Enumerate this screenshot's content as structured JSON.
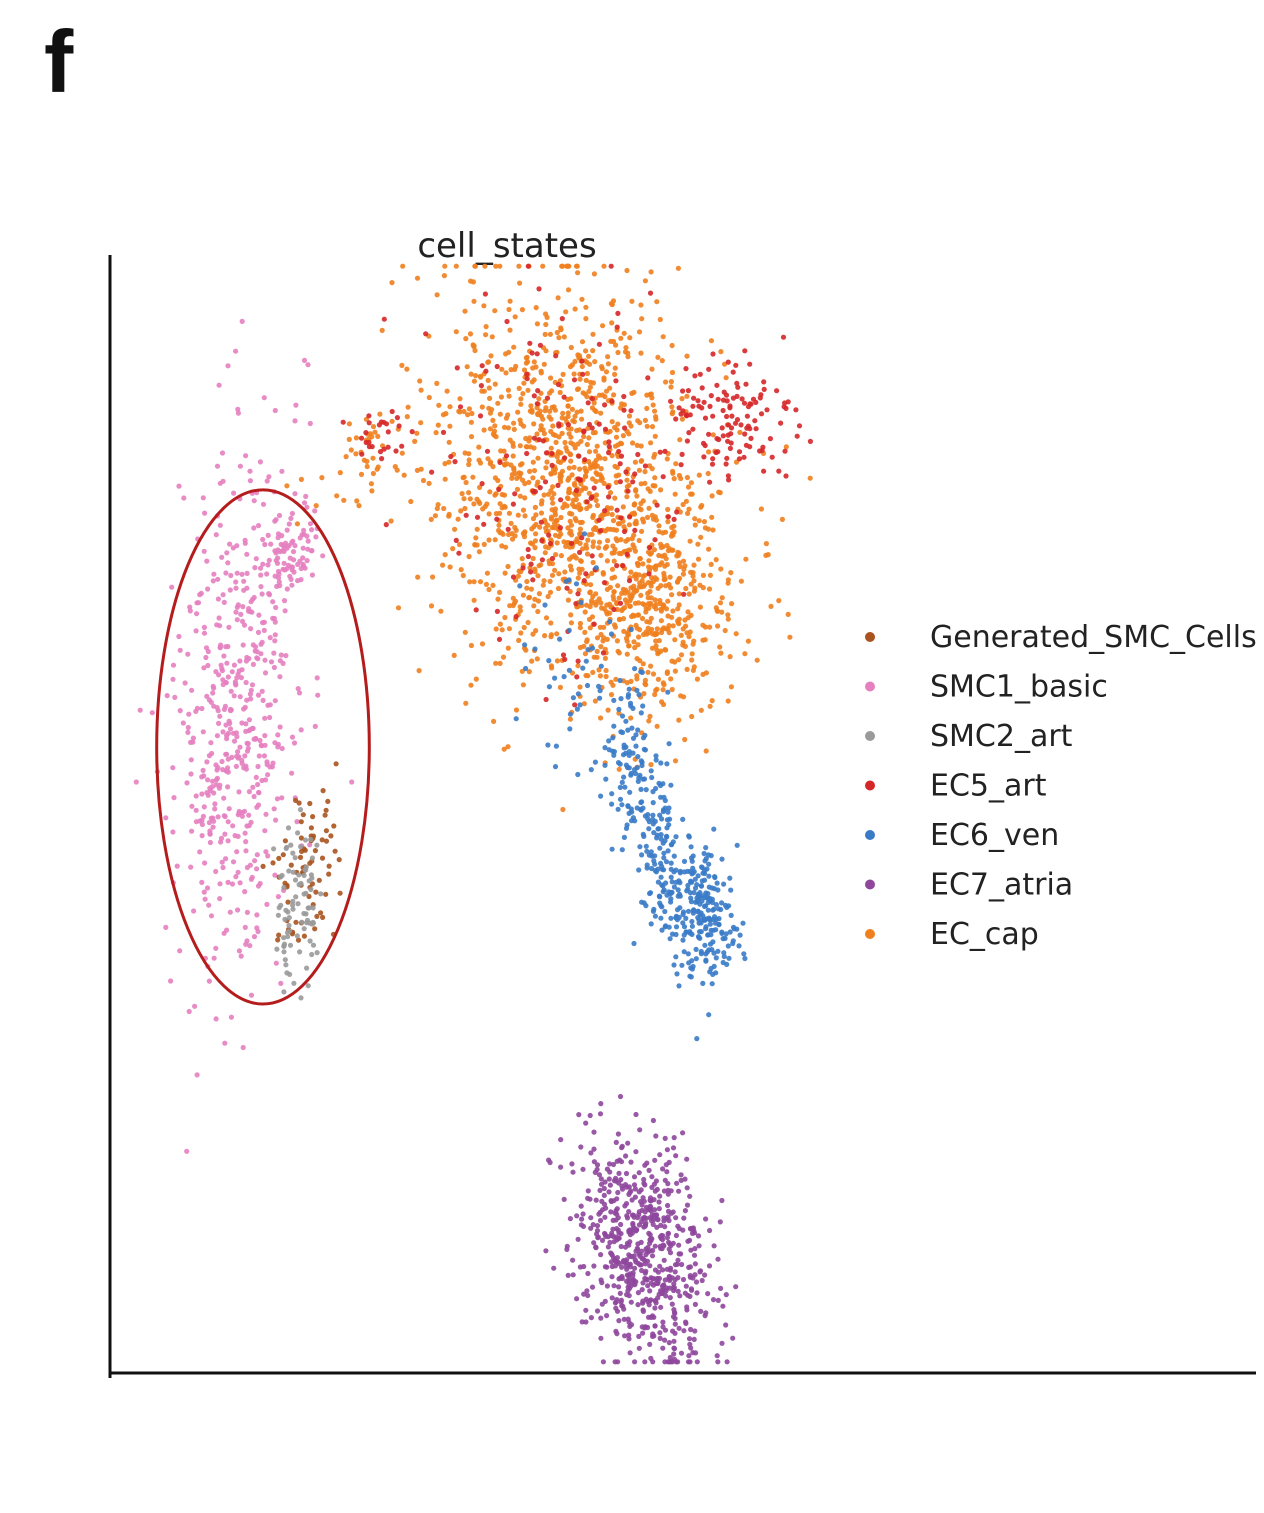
{
  "panel_label": "f",
  "chart_data": {
    "type": "scatter",
    "title": "cell_states",
    "xlabel": "",
    "ylabel": "",
    "xlim": [
      0,
      100
    ],
    "ylim": [
      0,
      100
    ],
    "grid": false,
    "legend_placement": "right",
    "legend": [
      {
        "name": "Generated_SMC_Cells",
        "color": "#a9541f"
      },
      {
        "name": "SMC1_basic",
        "color": "#e67fc0"
      },
      {
        "name": "SMC2_art",
        "color": "#9a9a9a"
      },
      {
        "name": "EC5_art",
        "color": "#d62728"
      },
      {
        "name": "EC6_ven",
        "color": "#3a7bc8"
      },
      {
        "name": "EC7_atria",
        "color": "#8e479c"
      },
      {
        "name": "EC_cap",
        "color": "#f0801e"
      }
    ],
    "annotation": {
      "shape": "ellipse",
      "color": "#b51c1c",
      "center": [
        18,
        56
      ],
      "radius": [
        12.5,
        23
      ]
    },
    "clusters": [
      {
        "series": "EC_cap",
        "cx": 55,
        "cy": 79,
        "sx": 8.5,
        "sy": 9,
        "n": 1300,
        "rho": -0.2
      },
      {
        "series": "EC_cap",
        "cx": 64,
        "cy": 67,
        "sx": 4.5,
        "sy": 4,
        "n": 250,
        "rho": 0
      },
      {
        "series": "EC_cap",
        "cx": 30,
        "cy": 82,
        "sx": 3.5,
        "sy": 2.5,
        "n": 40,
        "rho": 0.6
      },
      {
        "series": "EC5_art",
        "cx": 54,
        "cy": 80,
        "sx": 8,
        "sy": 9,
        "n": 180,
        "rho": 0
      },
      {
        "series": "EC5_art",
        "cx": 73,
        "cy": 85,
        "sx": 4,
        "sy": 3,
        "n": 120,
        "rho": 0
      },
      {
        "series": "EC5_art",
        "cx": 32,
        "cy": 84,
        "sx": 2,
        "sy": 1.5,
        "n": 25,
        "rho": 0
      },
      {
        "series": "EC6_ven",
        "cx": 63,
        "cy": 50,
        "sx": 2.8,
        "sy": 6.5,
        "n": 240,
        "rho": -0.75
      },
      {
        "series": "EC6_ven",
        "cx": 70,
        "cy": 41,
        "sx": 2,
        "sy": 3,
        "n": 220,
        "rho": -0.3
      },
      {
        "series": "EC6_ven",
        "cx": 53,
        "cy": 63,
        "sx": 4,
        "sy": 5,
        "n": 40,
        "rho": 0
      },
      {
        "series": "SMC1_basic",
        "cx": 15,
        "cy": 60,
        "sx": 3.6,
        "sy": 12.5,
        "n": 520,
        "rho": 0.2
      },
      {
        "series": "SMC1_basic",
        "cx": 21,
        "cy": 73,
        "sx": 1.6,
        "sy": 1.8,
        "n": 70,
        "rho": 0
      },
      {
        "series": "Generated_SMC_Cells",
        "cx": 23,
        "cy": 45,
        "sx": 1.8,
        "sy": 4,
        "n": 75,
        "rho": 0.1
      },
      {
        "series": "SMC2_art",
        "cx": 22,
        "cy": 42,
        "sx": 1.4,
        "sy": 3.5,
        "n": 85,
        "rho": 0
      },
      {
        "series": "EC7_atria",
        "cx": 63,
        "cy": 11,
        "sx": 4,
        "sy": 4.8,
        "n": 650,
        "rho": -0.3
      }
    ]
  }
}
